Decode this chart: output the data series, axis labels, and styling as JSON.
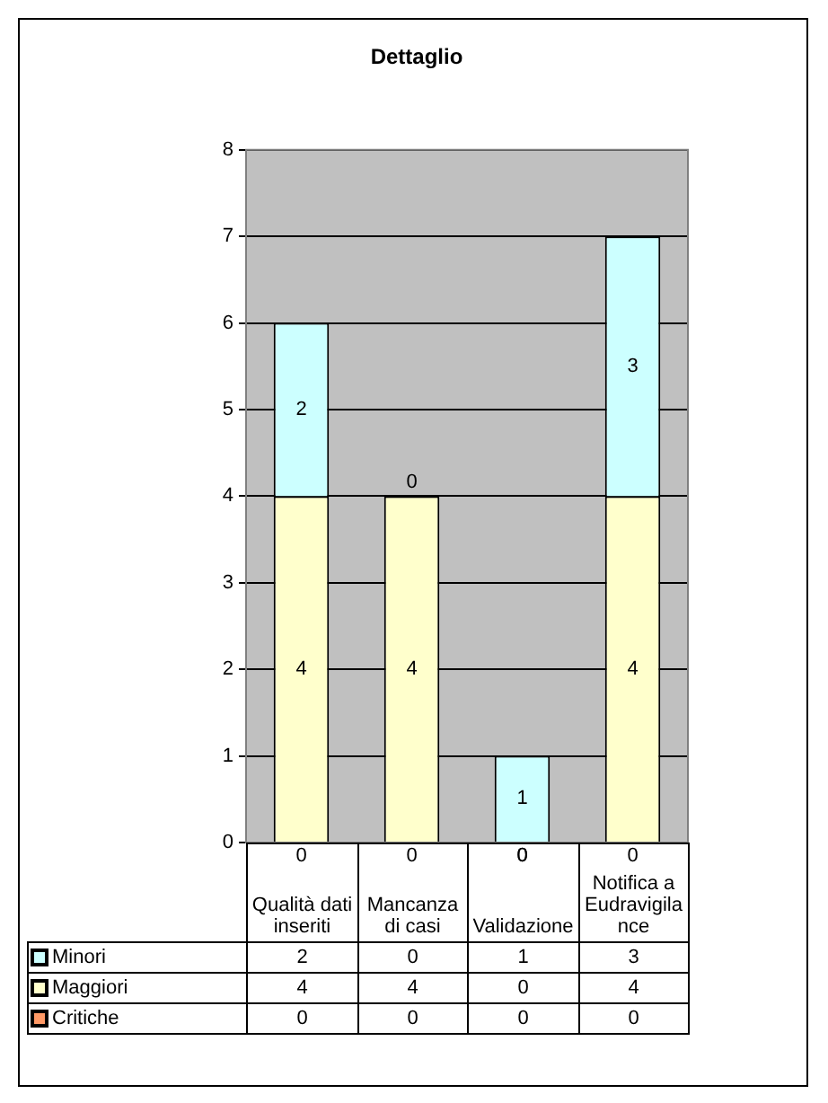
{
  "chart_data": {
    "type": "bar",
    "title": "Dettaglio",
    "categories": [
      "Qualità dati inseriti",
      "Mancanza di casi",
      "Validazione",
      "Notifica a Eudravigilance"
    ],
    "stacked": true,
    "ylim": [
      0,
      8
    ],
    "yticks": [
      0,
      1,
      2,
      3,
      4,
      5,
      6,
      7,
      8
    ],
    "grid": "y",
    "legend": "bottom left",
    "data_labels": true,
    "series": [
      {
        "name": "Critiche",
        "color": "#ff9966",
        "values": [
          0,
          0,
          0,
          0
        ],
        "value_labels": [
          "0",
          "0",
          "0",
          "0"
        ]
      },
      {
        "name": "Maggiori",
        "color": "#ffffcc",
        "values": [
          4,
          4,
          0,
          4
        ],
        "value_labels": [
          "4",
          "4",
          "0",
          "4"
        ]
      },
      {
        "name": "Minori",
        "color": "#ccffff",
        "values": [
          2,
          0,
          1,
          3
        ],
        "value_labels": [
          "2",
          "0",
          "1",
          "3"
        ]
      }
    ]
  }
}
